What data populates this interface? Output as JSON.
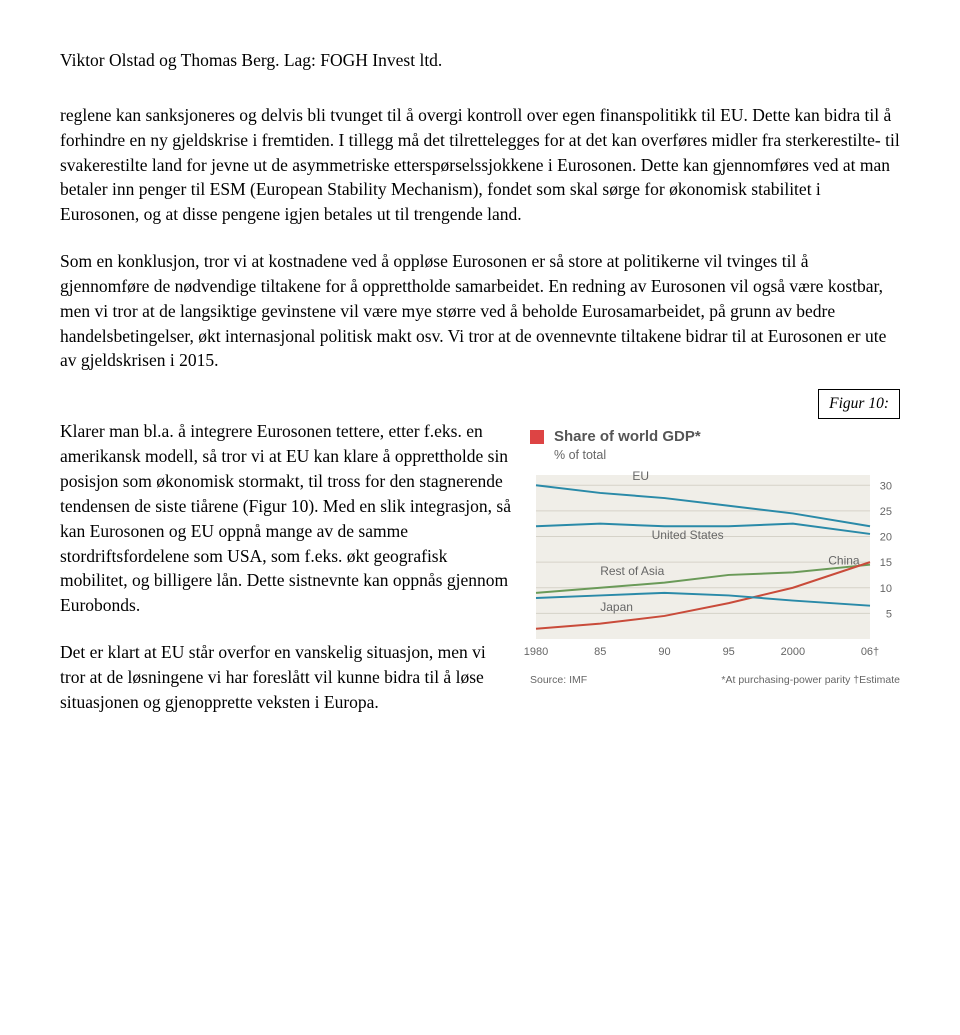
{
  "header": "Viktor Olstad og Thomas Berg. Lag: FOGH Invest ltd.",
  "p1": "reglene kan sanksjoneres og delvis bli tvunget til å overgi kontroll over egen finanspolitikk til EU. Dette kan bidra til å forhindre en ny gjeldskrise i fremtiden. I tillegg må det tilrettelegges for at det kan overføres midler fra sterkerestilte- til svakerestilte land for jevne ut de asymmetriske etterspørselssjokkene i Eurosonen. Dette kan gjennomføres ved at man betaler inn penger til ESM (European Stability Mechanism), fondet som skal sørge for økonomisk stabilitet i Eurosonen, og at disse pengene igjen betales ut til trengende land.",
  "p2": "Som en konklusjon, tror vi at kostnadene ved å oppløse Eurosonen er så store at politikerne vil tvinges til å gjennomføre de nødvendige tiltakene for å opprettholde samarbeidet. En redning av Eurosonen vil også være kostbar, men vi tror at de langsiktige gevinstene vil være mye større ved å beholde Eurosamarbeidet, på grunn av bedre handelsbetingelser, økt internasjonal politisk makt osv. Vi tror at de ovennevnte tiltakene bidrar til at Eurosonen er ute av gjeldskrisen i 2015.",
  "figure_label": "Figur 10:",
  "p3": "Klarer man bl.a. å integrere Eurosonen tettere, etter f.eks. en amerikansk modell, så tror vi at EU kan klare å opprettholde sin posisjon som økonomisk stormakt, til tross for den stagnerende tendensen de siste tiårene (Figur 10). Med en slik integrasjon, så kan Eurosonen og EU oppnå mange av de samme stordriftsfordelene som USA, som f.eks. økt geografisk mobilitet, og billigere lån. Dette sistnevnte kan oppnås gjennom Eurobonds.",
  "p4": "Det er klart at EU står overfor en vanskelig situasjon, men vi tror at de løsningene vi har foreslått vil kunne bidra til å løse situasjonen og gjenopprette veksten i Europa.",
  "chart": {
    "type": "line",
    "title": "Share of world GDP*",
    "subtitle": "% of total",
    "background_color": "#f0eee8",
    "grid_color": "#d5d2c8",
    "accent_square": "#d44444",
    "x_labels": [
      "1980",
      "85",
      "90",
      "95",
      "2000",
      "06†"
    ],
    "x_positions": [
      0,
      1,
      2,
      3,
      4,
      5.2
    ],
    "y_ticks": [
      5,
      10,
      15,
      20,
      25,
      30
    ],
    "ylim": [
      0,
      32
    ],
    "series": [
      {
        "name": "EU",
        "color": "#2a8aa8",
        "label_x": 1.5,
        "label_y": 31,
        "points": [
          [
            0,
            30
          ],
          [
            1,
            28.5
          ],
          [
            2,
            27.5
          ],
          [
            3,
            26
          ],
          [
            4,
            24.5
          ],
          [
            5.2,
            22
          ]
        ]
      },
      {
        "name": "United States",
        "color": "#2a8aa8",
        "label_x": 1.8,
        "label_y": 19.5,
        "points": [
          [
            0,
            22
          ],
          [
            1,
            22.5
          ],
          [
            2,
            22
          ],
          [
            3,
            22
          ],
          [
            4,
            22.5
          ],
          [
            5.2,
            20.5
          ]
        ]
      },
      {
        "name": "Rest of Asia",
        "color": "#6a9a58",
        "label_x": 1.0,
        "label_y": 12.5,
        "points": [
          [
            0,
            9
          ],
          [
            1,
            10
          ],
          [
            2,
            11
          ],
          [
            3,
            12.5
          ],
          [
            4,
            13
          ],
          [
            5.2,
            14.5
          ]
        ]
      },
      {
        "name": "China",
        "color": "#c94b3a",
        "label_x": 4.55,
        "label_y": 14.5,
        "points": [
          [
            0,
            2
          ],
          [
            1,
            3
          ],
          [
            2,
            4.5
          ],
          [
            3,
            7
          ],
          [
            4,
            10
          ],
          [
            5.2,
            15
          ]
        ]
      },
      {
        "name": "Japan",
        "color": "#2a8aa8",
        "label_x": 1.0,
        "label_y": 5.5,
        "points": [
          [
            0,
            8
          ],
          [
            1,
            8.5
          ],
          [
            2,
            9
          ],
          [
            3,
            8.5
          ],
          [
            4,
            7.5
          ],
          [
            5.2,
            6.5
          ]
        ]
      }
    ],
    "source_left": "Source: IMF",
    "source_right": "*At purchasing-power parity   †Estimate",
    "title_fontsize": 15,
    "label_fontsize": 12,
    "axis_fontsize": 11,
    "line_width": 2
  }
}
